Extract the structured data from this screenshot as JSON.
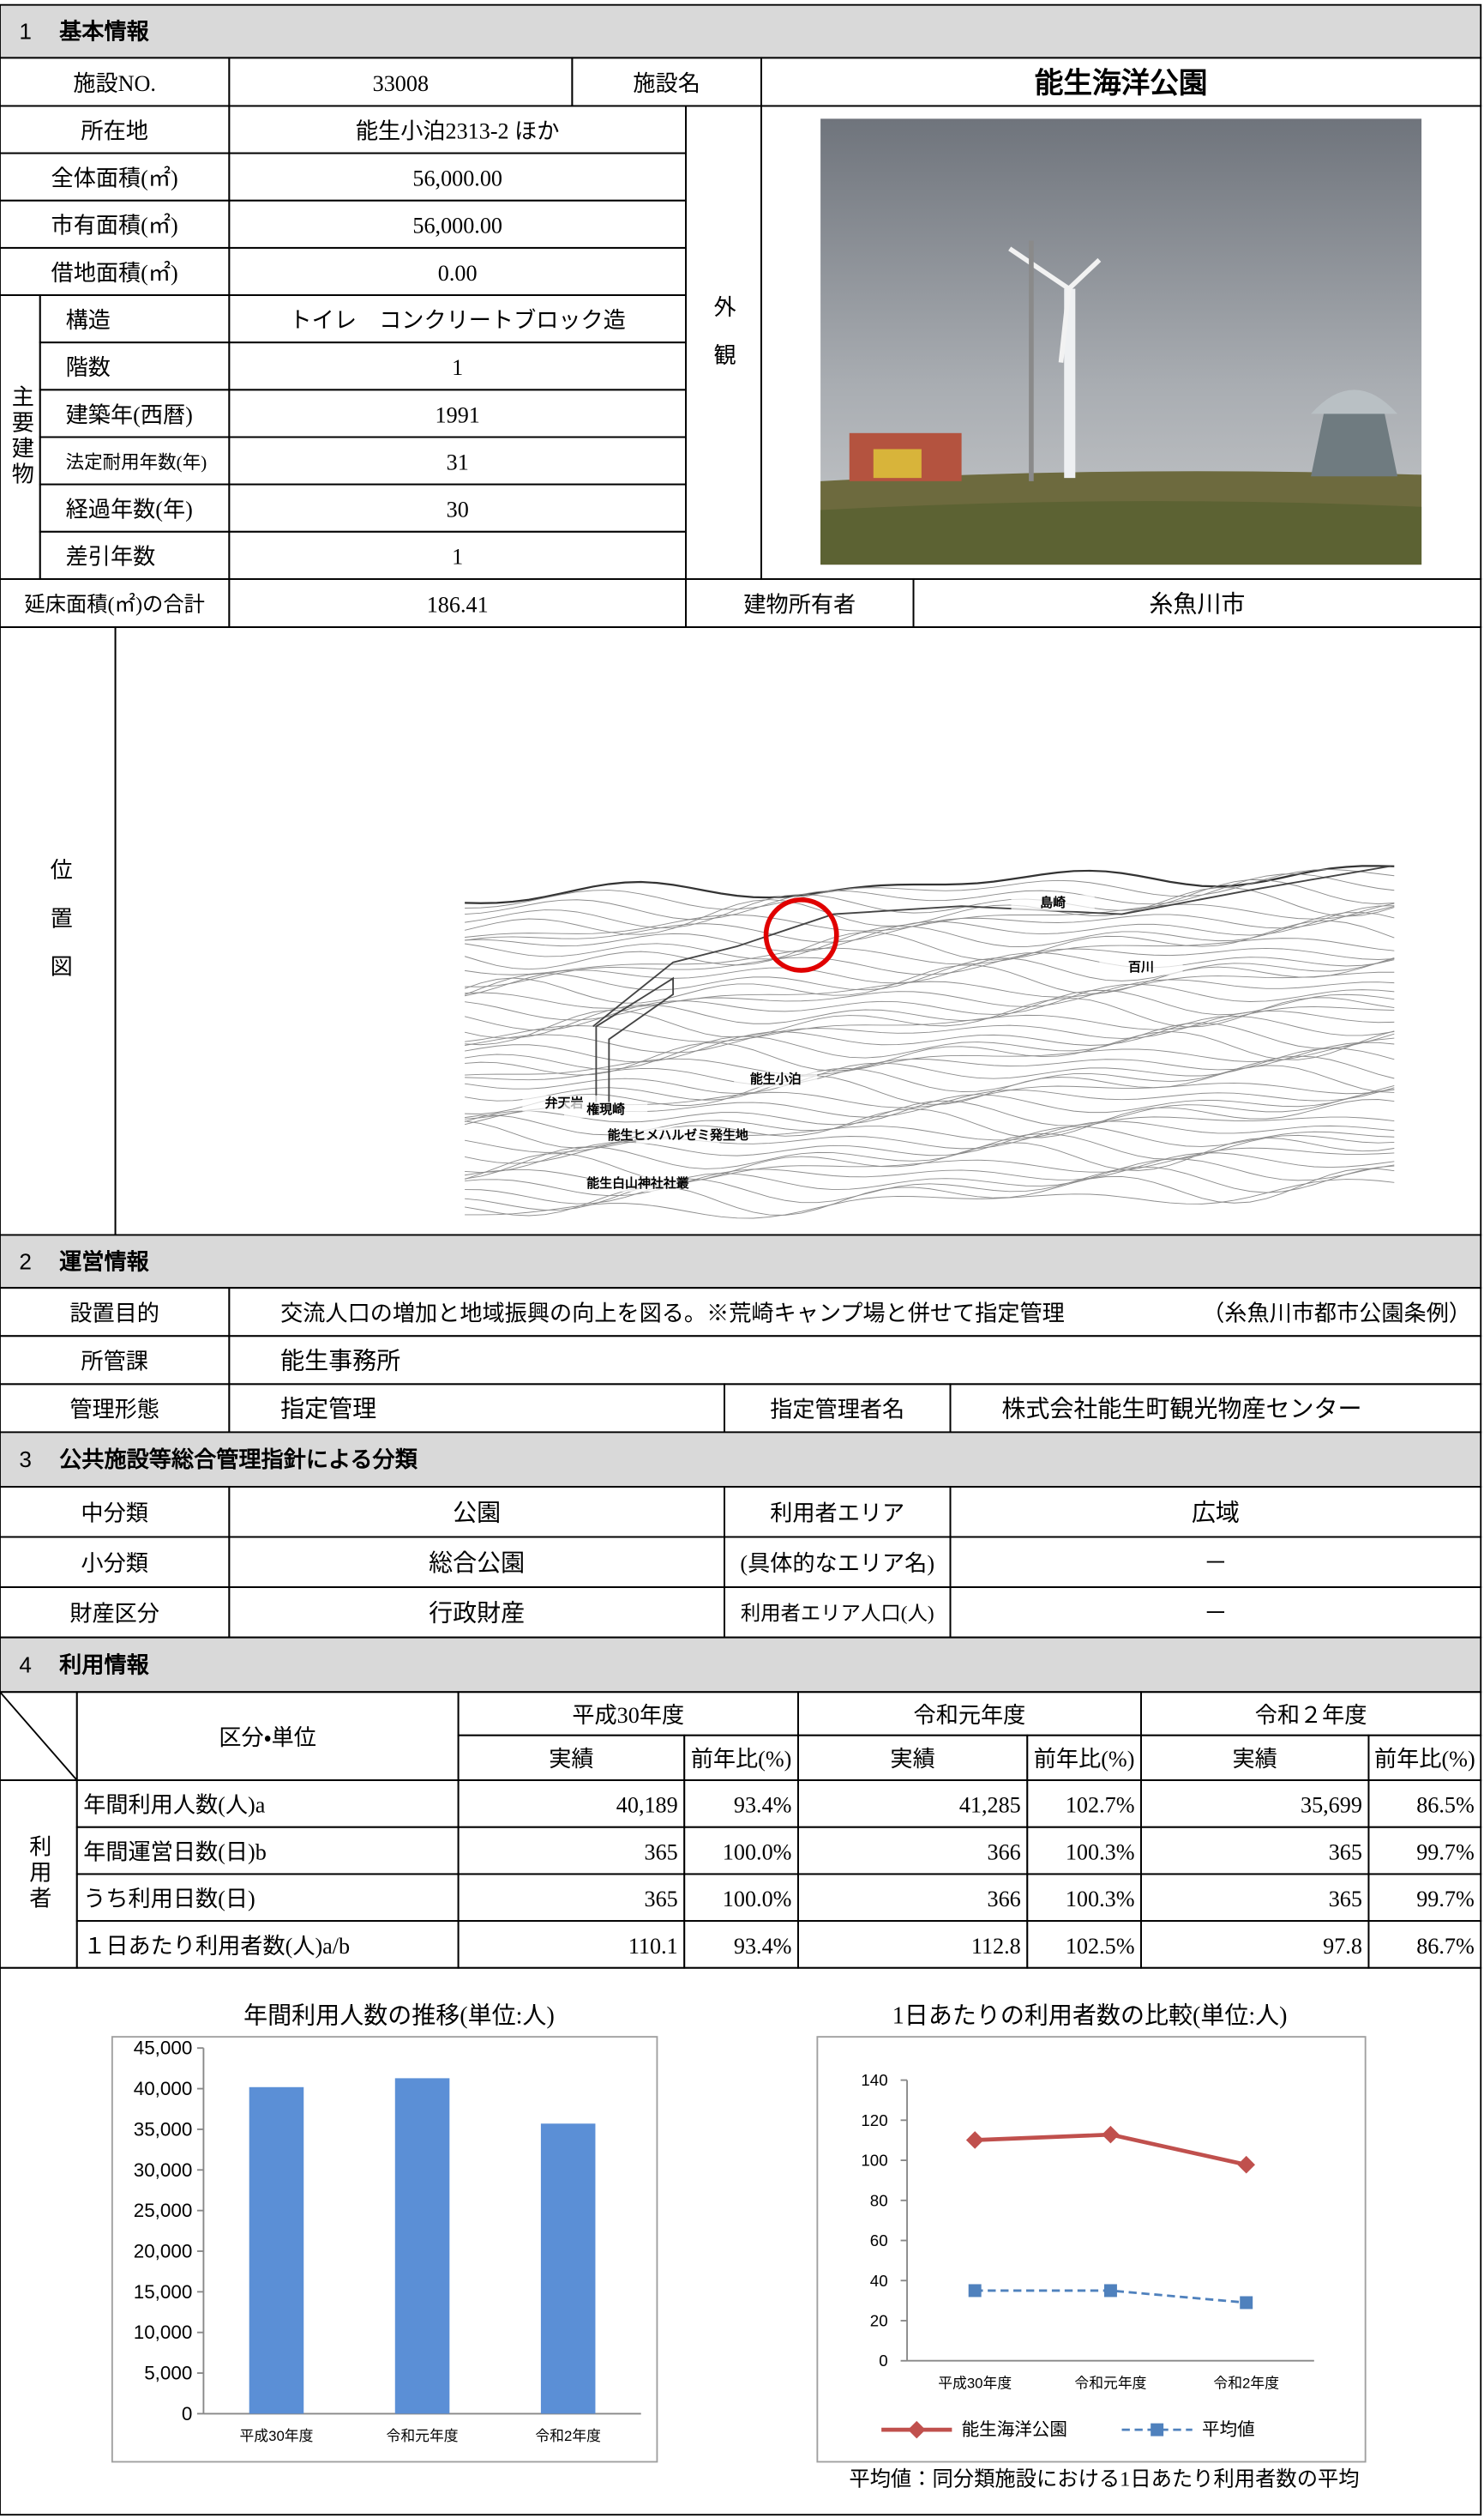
{
  "basic_info": {
    "section": {
      "number": "1",
      "title": "基本情報"
    },
    "facility_no": {
      "label": "施設NO.",
      "value": "33008"
    },
    "facility_name": {
      "label": "施設名",
      "value": "能生海洋公園"
    },
    "location": {
      "label": "所在地",
      "value": "能生小泊2313-2 ほか"
    },
    "total_area": {
      "label": "全体面積(㎡)",
      "value": "56,000.00"
    },
    "city_area": {
      "label": "市有面積(㎡)",
      "value": "56,000.00"
    },
    "leased_area": {
      "label": "借地面積(㎡)",
      "value": "0.00"
    },
    "main_building": {
      "label": "主要建物",
      "rows": [
        {
          "label": "構造",
          "value": "トイレ　コンクリートブロック造"
        },
        {
          "label": "階数",
          "value": "1"
        },
        {
          "label": "建築年(西暦)",
          "value": "1991"
        },
        {
          "label": "法定耐用年数(年)",
          "value": "31"
        },
        {
          "label": "経過年数(年)",
          "value": "30"
        },
        {
          "label": "差引年数",
          "value": "1"
        }
      ]
    },
    "exterior_label": "外観",
    "floor_area": {
      "label": "延床面積(㎡)の合計",
      "value": "186.41"
    },
    "owner": {
      "label": "建物所有者",
      "value": "糸魚川市"
    },
    "location_map": {
      "label": "位置図",
      "places": [
        "島崎",
        "百川",
        "能生小泊",
        "弁天岩",
        "権現崎",
        "能生ヒメハルゼミ発生地",
        "能生白山神社社叢"
      ]
    }
  },
  "operation_info": {
    "section": {
      "number": "2",
      "title": "運営情報"
    },
    "purpose": {
      "label": "設置目的",
      "value": "交流人口の増加と地域振興の向上を図る。※荒崎キャンプ場と併せて指定管理",
      "note": "（糸魚川市都市公園条例）"
    },
    "department": {
      "label": "所管課",
      "value": "能生事務所"
    },
    "management_type": {
      "label": "管理形態",
      "value": "指定管理"
    },
    "manager": {
      "label": "指定管理者名",
      "value": "株式会社能生町観光物産センター"
    }
  },
  "classification": {
    "section": {
      "number": "3",
      "title": "公共施設等総合管理指針による分類"
    },
    "rows": [
      {
        "label": "中分類",
        "value": "公園",
        "area_label": "利用者エリア",
        "area_value": "広域"
      },
      {
        "label": "小分類",
        "value": "総合公園",
        "area_label": "(具体的なエリア名)",
        "area_value": "－"
      },
      {
        "label": "財産区分",
        "value": "行政財産",
        "area_label": "利用者エリア人口(人)",
        "area_value": "－"
      }
    ]
  },
  "usage_info": {
    "section": {
      "number": "4",
      "title": "利用情報"
    },
    "header": "区分・単位",
    "years": [
      "平成30年度",
      "令和元年度",
      "令和２年度"
    ],
    "result_label": "実績",
    "ratio_label": "前年比(%)",
    "group_label": "利用者",
    "rows": [
      {
        "label": "年間利用人数(人)a",
        "cells": [
          "40,189",
          "93.4%",
          "41,285",
          "102.7%",
          "35,699",
          "86.5%"
        ]
      },
      {
        "label": "年間運営日数(日)b",
        "cells": [
          "365",
          "100.0%",
          "366",
          "100.3%",
          "365",
          "99.7%"
        ]
      },
      {
        "label": "うち利用日数(日)",
        "cells": [
          "365",
          "100.0%",
          "366",
          "100.3%",
          "365",
          "99.7%"
        ]
      },
      {
        "label": "１日あたり利用者数(人)a/b",
        "cells": [
          "110.1",
          "93.4%",
          "112.8",
          "102.5%",
          "97.8",
          "86.7%"
        ]
      }
    ]
  },
  "chart_data": [
    {
      "type": "bar",
      "title": "年間利用人数の推移(単位:人)",
      "categories": [
        "平成30年度",
        "令和元年度",
        "令和2年度"
      ],
      "values": [
        40189,
        41285,
        35699
      ],
      "color": "#5b8fd6",
      "ylim": [
        0,
        45000
      ],
      "yticks": [
        0,
        {
          "value": 5000,
          "label": "5,000"
        },
        {
          "value": 10000,
          "label": "10,000"
        },
        {
          "value": 15000,
          "label": "15,000"
        },
        {
          "value": 20000,
          "label": "20,000"
        },
        {
          "value": 25000,
          "label": "25,000"
        },
        {
          "value": 30000,
          "label": "30,000"
        },
        {
          "value": 35000,
          "label": "35,000"
        },
        {
          "value": 40000,
          "label": "40,000"
        },
        {
          "value": 45000,
          "label": "45,000"
        }
      ],
      "grid": false
    },
    {
      "type": "line",
      "title": "1日あたりの利用者数の比較(単位:人)",
      "categories": [
        "平成30年度",
        "令和元年度",
        "令和2年度"
      ],
      "series": [
        {
          "name": "能生海洋公園",
          "color": "#c0504d",
          "values": [
            110.1,
            112.8,
            97.8
          ],
          "marker": "diamond",
          "line_style": "solid"
        },
        {
          "name": "平均値",
          "color": "#4f81bd",
          "values": [
            35,
            35,
            29
          ],
          "marker": "square",
          "line_style": "dashed"
        }
      ],
      "ylim": [
        0,
        140
      ],
      "yticks": [
        0,
        20,
        40,
        60,
        80,
        100,
        120,
        140
      ],
      "grid": false,
      "legend": "bottom",
      "footnote": "平均値：同分類施設における1日あたり利用者数の平均"
    }
  ]
}
